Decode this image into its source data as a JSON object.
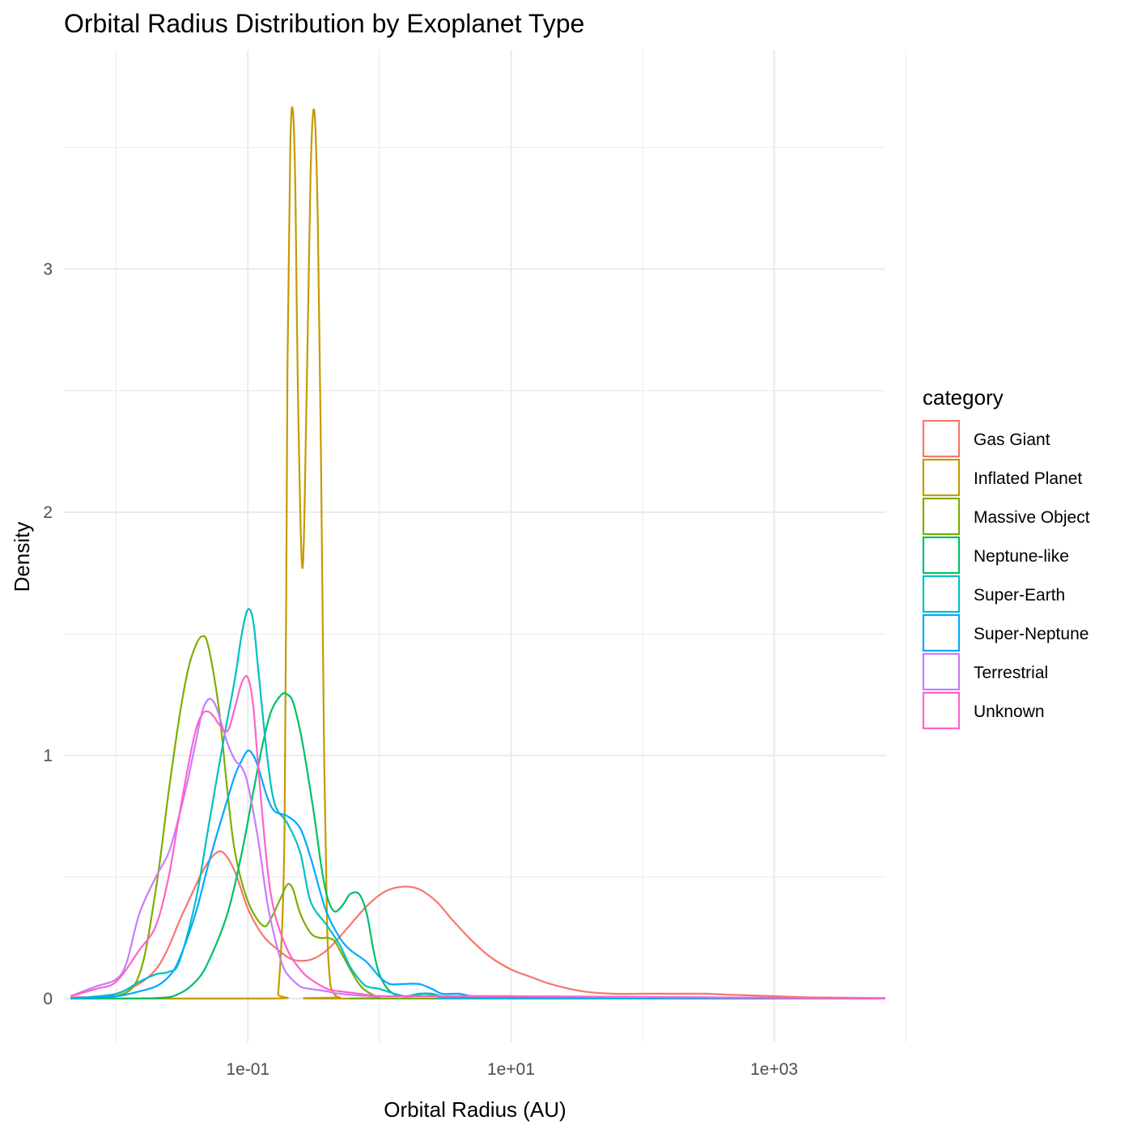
{
  "chart_data": {
    "type": "line",
    "title": "Orbital Radius Distribution by Exoplanet Type",
    "xlabel": "Orbital Radius (AU)",
    "ylabel": "Density",
    "x_scale": "log10",
    "xlim": [
      0.004,
      7000
    ],
    "ylim": [
      -0.18,
      3.9
    ],
    "x_ticks": [
      {
        "value": 0.1,
        "label": "1e-01"
      },
      {
        "value": 10,
        "label": "1e+01"
      },
      {
        "value": 1000,
        "label": "1e+03"
      }
    ],
    "x_minor_ticks": [
      0.01,
      1,
      100,
      10000
    ],
    "y_ticks": [
      {
        "value": 0,
        "label": "0"
      },
      {
        "value": 1,
        "label": "1"
      },
      {
        "value": 2,
        "label": "2"
      },
      {
        "value": 3,
        "label": "3"
      }
    ],
    "y_minor_ticks": [
      0.5,
      1.5,
      2.5,
      3.5
    ],
    "grid": true,
    "legend_title": "category",
    "legend_position": "right",
    "series": [
      {
        "name": "Gas Giant",
        "color": "#F8766D",
        "x": [
          0.0045,
          0.01,
          0.02,
          0.032,
          0.045,
          0.055,
          0.065,
          0.08,
          0.1,
          0.13,
          0.17,
          0.22,
          0.3,
          0.4,
          0.55,
          0.8,
          1.1,
          1.5,
          2,
          2.7,
          3.5,
          5,
          7,
          10,
          14,
          20,
          35,
          60,
          100,
          200,
          300,
          500,
          1000,
          2000,
          7000
        ],
        "y": [
          0.005,
          0.02,
          0.12,
          0.35,
          0.52,
          0.59,
          0.6,
          0.52,
          0.37,
          0.26,
          0.2,
          0.16,
          0.16,
          0.2,
          0.28,
          0.38,
          0.44,
          0.46,
          0.45,
          0.4,
          0.33,
          0.24,
          0.17,
          0.12,
          0.09,
          0.06,
          0.03,
          0.02,
          0.02,
          0.02,
          0.02,
          0.015,
          0.01,
          0.005,
          0.002
        ]
      },
      {
        "name": "Inflated Planet",
        "color": "#C49A00",
        "x": [
          0.0045,
          0.15,
          0.17,
          0.19,
          0.2,
          0.21,
          0.22,
          0.23,
          0.24,
          0.26,
          0.28,
          0.3,
          0.32,
          0.34,
          0.36,
          0.38,
          0.4,
          0.42,
          0.44,
          0.47,
          0.5,
          0.55,
          7000
        ],
        "y": [
          0,
          0,
          0.02,
          0.7,
          2.6,
          3.5,
          3.65,
          3.3,
          2.5,
          1.77,
          2.5,
          3.4,
          3.65,
          3.2,
          2.2,
          1.0,
          0.3,
          0.08,
          0.03,
          0.01,
          0.005,
          0,
          0
        ]
      },
      {
        "name": "Massive Object",
        "color": "#7CAE00",
        "x": [
          0.0045,
          0.01,
          0.015,
          0.02,
          0.025,
          0.03,
          0.035,
          0.04,
          0.045,
          0.05,
          0.06,
          0.07,
          0.08,
          0.1,
          0.13,
          0.15,
          0.18,
          0.2,
          0.22,
          0.25,
          0.3,
          0.35,
          0.4,
          0.45,
          0.5,
          0.6,
          0.7,
          0.8,
          1,
          1.2,
          7000
        ],
        "y": [
          0,
          0.01,
          0.1,
          0.45,
          0.85,
          1.15,
          1.35,
          1.45,
          1.49,
          1.45,
          1.2,
          0.85,
          0.6,
          0.4,
          0.3,
          0.33,
          0.42,
          0.47,
          0.45,
          0.35,
          0.27,
          0.25,
          0.25,
          0.24,
          0.2,
          0.12,
          0.06,
          0.03,
          0.005,
          0,
          0
        ]
      },
      {
        "name": "Neptune-like",
        "color": "#00BE67",
        "x": [
          0.0045,
          0.02,
          0.03,
          0.04,
          0.05,
          0.07,
          0.09,
          0.11,
          0.13,
          0.15,
          0.18,
          0.2,
          0.22,
          0.25,
          0.28,
          0.32,
          0.36,
          0.4,
          0.45,
          0.5,
          0.55,
          0.6,
          0.7,
          0.8,
          0.9,
          1,
          1.2,
          1.5,
          1.8,
          2.2,
          3,
          4,
          5,
          7000
        ],
        "y": [
          0,
          0.002,
          0.02,
          0.07,
          0.15,
          0.35,
          0.6,
          0.85,
          1.05,
          1.18,
          1.25,
          1.25,
          1.22,
          1.1,
          0.95,
          0.75,
          0.55,
          0.42,
          0.36,
          0.37,
          0.4,
          0.43,
          0.43,
          0.35,
          0.2,
          0.1,
          0.03,
          0.01,
          0.01,
          0.02,
          0.01,
          0.005,
          0,
          0
        ]
      },
      {
        "name": "Super-Earth",
        "color": "#00BFC4",
        "x": [
          0.0045,
          0.01,
          0.015,
          0.02,
          0.025,
          0.03,
          0.04,
          0.05,
          0.06,
          0.07,
          0.08,
          0.09,
          0.1,
          0.11,
          0.12,
          0.14,
          0.16,
          0.2,
          0.25,
          0.3,
          0.4,
          0.5,
          0.6,
          0.7,
          0.8,
          1,
          1.3,
          1.6,
          2,
          2.5,
          3,
          4,
          5,
          7000
        ],
        "y": [
          0,
          0.02,
          0.07,
          0.1,
          0.11,
          0.15,
          0.4,
          0.7,
          0.95,
          1.15,
          1.32,
          1.5,
          1.6,
          1.55,
          1.35,
          1.0,
          0.8,
          0.72,
          0.6,
          0.4,
          0.3,
          0.22,
          0.13,
          0.08,
          0.05,
          0.04,
          0.02,
          0.01,
          0.02,
          0.02,
          0.01,
          0.005,
          0,
          0
        ]
      },
      {
        "name": "Super-Neptune",
        "color": "#00A9FF",
        "x": [
          0.0045,
          0.01,
          0.015,
          0.02,
          0.025,
          0.03,
          0.04,
          0.05,
          0.06,
          0.07,
          0.08,
          0.09,
          0.1,
          0.11,
          0.12,
          0.14,
          0.16,
          0.2,
          0.25,
          0.3,
          0.35,
          0.4,
          0.5,
          0.6,
          0.8,
          1,
          1.2,
          1.5,
          2,
          2.5,
          3,
          4,
          5,
          7,
          7000
        ],
        "y": [
          0,
          0.01,
          0.03,
          0.05,
          0.09,
          0.16,
          0.35,
          0.55,
          0.7,
          0.82,
          0.92,
          0.98,
          1.02,
          1.0,
          0.95,
          0.83,
          0.77,
          0.75,
          0.7,
          0.58,
          0.45,
          0.35,
          0.25,
          0.2,
          0.15,
          0.09,
          0.06,
          0.06,
          0.06,
          0.04,
          0.02,
          0.02,
          0.01,
          0.005,
          0
        ]
      },
      {
        "name": "Terrestrial",
        "color": "#C77CFF",
        "x": [
          0.0045,
          0.007,
          0.01,
          0.012,
          0.015,
          0.02,
          0.025,
          0.03,
          0.035,
          0.04,
          0.045,
          0.05,
          0.055,
          0.06,
          0.07,
          0.08,
          0.09,
          0.1,
          0.12,
          0.14,
          0.16,
          0.18,
          0.2,
          0.25,
          0.3,
          0.4,
          0.5,
          1,
          10,
          7000
        ],
        "y": [
          0.01,
          0.05,
          0.08,
          0.15,
          0.35,
          0.5,
          0.6,
          0.75,
          0.9,
          1.05,
          1.18,
          1.23,
          1.22,
          1.17,
          1.05,
          0.98,
          0.95,
          0.88,
          0.65,
          0.4,
          0.25,
          0.15,
          0.1,
          0.05,
          0.04,
          0.03,
          0.02,
          0.01,
          0.01,
          0
        ]
      },
      {
        "name": "Unknown",
        "color": "#FF61CC",
        "x": [
          0.0045,
          0.007,
          0.01,
          0.015,
          0.02,
          0.025,
          0.03,
          0.035,
          0.04,
          0.045,
          0.05,
          0.055,
          0.06,
          0.07,
          0.08,
          0.09,
          0.1,
          0.11,
          0.12,
          0.14,
          0.16,
          0.2,
          0.25,
          0.3,
          0.4,
          0.5,
          0.7,
          1,
          1.5,
          2,
          5,
          10,
          7000
        ],
        "y": [
          0.01,
          0.04,
          0.07,
          0.2,
          0.3,
          0.5,
          0.75,
          0.95,
          1.1,
          1.17,
          1.18,
          1.16,
          1.13,
          1.1,
          1.2,
          1.3,
          1.32,
          1.2,
          0.95,
          0.55,
          0.35,
          0.2,
          0.12,
          0.08,
          0.04,
          0.03,
          0.02,
          0.01,
          0.01,
          0.01,
          0.01,
          0.01,
          0
        ]
      }
    ]
  }
}
